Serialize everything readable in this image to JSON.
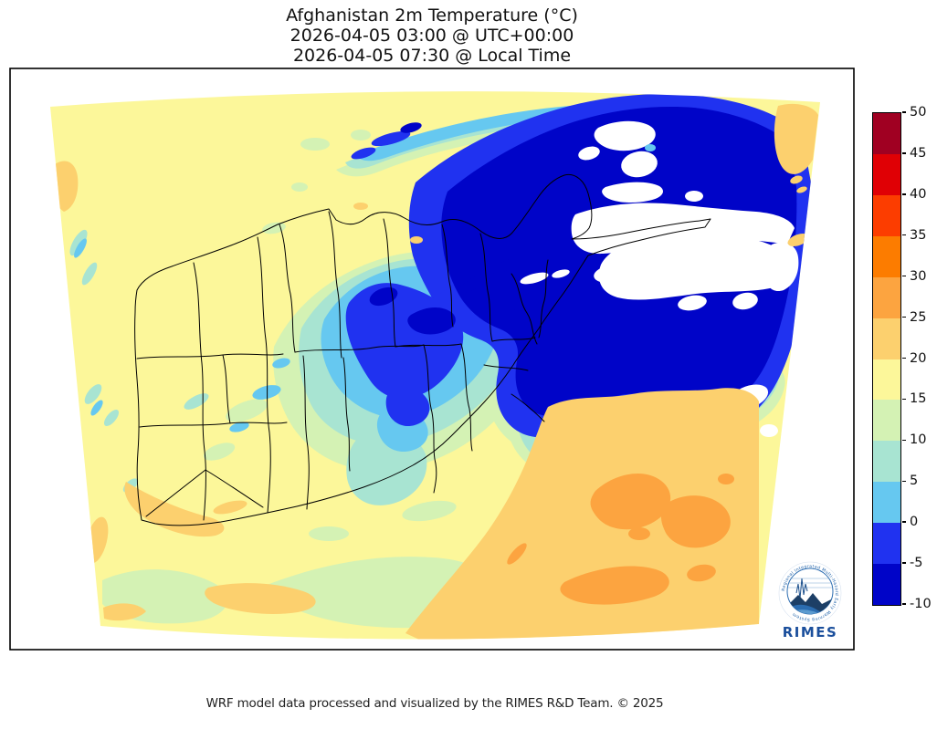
{
  "title": {
    "line1": "Afghanistan 2m Temperature (°C)",
    "line2": "2026-04-05 03:00 @ UTC+00:00",
    "line3": "2026-04-05 07:30 @ Local Time"
  },
  "footer": {
    "credit": "WRF model data processed and visualized by the RIMES R&D Team. © 2025"
  },
  "logo": {
    "name": "RIMES",
    "ring_text": "Regional Integrated Multi-Hazard Early Warning System"
  },
  "colorbar": {
    "unit": "°C",
    "min": -10,
    "max": 50,
    "step": 5,
    "tick_labels": [
      "50",
      "45",
      "40",
      "35",
      "30",
      "25",
      "20",
      "15",
      "10",
      "5",
      "0",
      "-5",
      "-10"
    ],
    "segments": [
      {
        "label": "45 to 50",
        "color": "#a00022"
      },
      {
        "label": "40 to 45",
        "color": "#e00005"
      },
      {
        "label": "35 to 40",
        "color": "#fc3d00"
      },
      {
        "label": "30 to 35",
        "color": "#fc7c00"
      },
      {
        "label": "25 to 30",
        "color": "#fca440"
      },
      {
        "label": "20 to 25",
        "color": "#fcd06e"
      },
      {
        "label": "15 to 20",
        "color": "#fcf79a"
      },
      {
        "label": "10 to 15",
        "color": "#d4f2b4"
      },
      {
        "label": "5 to 10",
        "color": "#a8e4d2"
      },
      {
        "label": "0 to 5",
        "color": "#66c8f0"
      },
      {
        "label": "-5 to 0",
        "color": "#2032f0"
      },
      {
        "label": "-10 to -5",
        "color": "#0004c8"
      }
    ]
  },
  "palette": {
    "white_cold": "#ffffff",
    "navy": "#0004c8",
    "blue": "#2032f0",
    "sky": "#66c8f0",
    "teal": "#a8e4d2",
    "green": "#d4f2b4",
    "yellow": "#fcf79a",
    "orange_light": "#fcd06e",
    "orange": "#fca440",
    "border": "#000000",
    "logo_blue": "#1b5fa8",
    "logo_dark": "#1b4f9c"
  },
  "chart_data": {
    "type": "heatmap",
    "title": "Afghanistan 2m Temperature (°C)",
    "valid_time_utc": "2026-04-05 03:00 @ UTC+00:00",
    "valid_time_local": "2026-04-05 07:30 @ Local Time",
    "colorbar_levels_c": [
      -10,
      -5,
      0,
      5,
      10,
      15,
      20,
      25,
      30,
      35,
      40,
      45,
      50
    ],
    "colorbar_colors": [
      "#0004c8",
      "#2032f0",
      "#66c8f0",
      "#a8e4d2",
      "#d4f2b4",
      "#fcf79a",
      "#fcd06e",
      "#fca440",
      "#fc7c00",
      "#fc3d00",
      "#e00005",
      "#a00022"
    ],
    "legend_position": "right",
    "map_region": "Afghanistan and surrounding WRF model domain",
    "observed_pattern": [
      {
        "area": "northeast Hindu Kush / Pamir mountains",
        "value_c": "below -10 (white) to -5"
      },
      {
        "area": "central highlands around Kabul",
        "value_c": "-10 to 0"
      },
      {
        "area": "northwest plains",
        "value_c": "15 to 20"
      },
      {
        "area": "southwest deserts",
        "value_c": "15 to 25"
      },
      {
        "area": "southeast lowlands",
        "value_c": "20 to 30"
      }
    ]
  }
}
